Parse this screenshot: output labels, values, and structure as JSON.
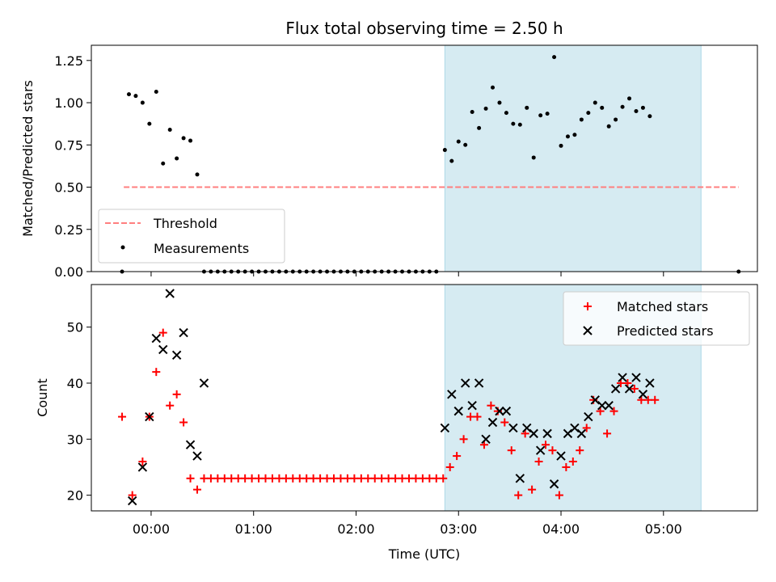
{
  "title": "Flux total observing time = 2.50 h",
  "colors": {
    "threshold": "#ff7f7f",
    "measurement": "#000000",
    "matched": "#ff0000",
    "predicted": "#000000",
    "shade": "#add8e6"
  },
  "chart_data": [
    {
      "type": "scatter",
      "ylabel": "Matched/Predicted stars",
      "xlim": [
        "23:25",
        "05:55"
      ],
      "ylim": [
        0,
        1.34
      ],
      "yticks": [
        0,
        0.25,
        0.5,
        0.75,
        1.0,
        1.25
      ],
      "ytick_labels": [
        "0.00",
        "0.25",
        "0.50",
        "0.75",
        "1.00",
        "1.25"
      ],
      "shaded_region": [
        "02:52",
        "05:22"
      ],
      "legend_position": "lower-left",
      "threshold": {
        "name": "Threshold",
        "value": 0.5,
        "x_range": [
          "23:44",
          "05:44"
        ]
      },
      "series": [
        {
          "name": "Measurements",
          "points": [
            [
              "23:43",
              0.0
            ],
            [
              "23:47",
              1.05
            ],
            [
              "23:51",
              1.04
            ],
            [
              "23:55",
              1.0
            ],
            [
              "23:59",
              0.875
            ],
            [
              "00:03",
              1.065
            ],
            [
              "00:07",
              0.64
            ],
            [
              "00:11",
              0.84
            ],
            [
              "00:15",
              0.67
            ],
            [
              "00:19",
              0.79
            ],
            [
              "00:23",
              0.775
            ],
            [
              "00:27",
              0.575
            ],
            [
              "00:31",
              0.0
            ],
            [
              "00:35",
              0.0
            ],
            [
              "00:39",
              0.0
            ],
            [
              "00:43",
              0.0
            ],
            [
              "00:47",
              0.0
            ],
            [
              "00:51",
              0.0
            ],
            [
              "00:55",
              0.0
            ],
            [
              "00:59",
              0.0
            ],
            [
              "01:03",
              0.0
            ],
            [
              "01:07",
              0.0
            ],
            [
              "01:11",
              0.0
            ],
            [
              "01:15",
              0.0
            ],
            [
              "01:19",
              0.0
            ],
            [
              "01:23",
              0.0
            ],
            [
              "01:27",
              0.0
            ],
            [
              "01:31",
              0.0
            ],
            [
              "01:35",
              0.0
            ],
            [
              "01:39",
              0.0
            ],
            [
              "01:43",
              0.0
            ],
            [
              "01:47",
              0.0
            ],
            [
              "01:51",
              0.0
            ],
            [
              "01:55",
              0.0
            ],
            [
              "01:59",
              0.0
            ],
            [
              "02:03",
              0.0
            ],
            [
              "02:07",
              0.0
            ],
            [
              "02:11",
              0.0
            ],
            [
              "02:15",
              0.0
            ],
            [
              "02:19",
              0.0
            ],
            [
              "02:23",
              0.0
            ],
            [
              "02:27",
              0.0
            ],
            [
              "02:31",
              0.0
            ],
            [
              "02:35",
              0.0
            ],
            [
              "02:39",
              0.0
            ],
            [
              "02:43",
              0.0
            ],
            [
              "02:47",
              0.0
            ],
            [
              "02:52",
              0.72
            ],
            [
              "02:56",
              0.655
            ],
            [
              "03:00",
              0.77
            ],
            [
              "03:04",
              0.75
            ],
            [
              "03:08",
              0.945
            ],
            [
              "03:12",
              0.85
            ],
            [
              "03:16",
              0.965
            ],
            [
              "03:20",
              1.09
            ],
            [
              "03:24",
              1.0
            ],
            [
              "03:28",
              0.94
            ],
            [
              "03:32",
              0.875
            ],
            [
              "03:36",
              0.87
            ],
            [
              "03:40",
              0.97
            ],
            [
              "03:44",
              0.675
            ],
            [
              "03:48",
              0.925
            ],
            [
              "03:52",
              0.935
            ],
            [
              "03:56",
              1.27
            ],
            [
              "04:00",
              0.745
            ],
            [
              "04:04",
              0.8
            ],
            [
              "04:08",
              0.81
            ],
            [
              "04:12",
              0.9
            ],
            [
              "04:16",
              0.94
            ],
            [
              "04:20",
              1.0
            ],
            [
              "04:24",
              0.97
            ],
            [
              "04:28",
              0.86
            ],
            [
              "04:32",
              0.9
            ],
            [
              "04:36",
              0.975
            ],
            [
              "04:40",
              1.025
            ],
            [
              "04:44",
              0.95
            ],
            [
              "04:48",
              0.97
            ],
            [
              "04:52",
              0.92
            ],
            [
              "05:44",
              0.0
            ]
          ]
        }
      ]
    },
    {
      "type": "scatter",
      "xlabel": "Time (UTC)",
      "ylabel": "Count",
      "xlim": [
        "23:25",
        "05:55"
      ],
      "ylim": [
        17.2,
        57.6
      ],
      "yticks": [
        20,
        30,
        40,
        50
      ],
      "xticks": [
        "00:00",
        "01:00",
        "02:00",
        "03:00",
        "04:00",
        "05:00"
      ],
      "xtick_labels": [
        "00:00",
        "01:00",
        "02:00",
        "03:00",
        "04:00",
        "05:00"
      ],
      "shaded_region": [
        "02:52",
        "05:22"
      ],
      "legend_position": "upper-right",
      "series": [
        {
          "name": "Matched stars",
          "marker": "plus",
          "points": [
            [
              "23:43",
              34
            ],
            [
              "23:49",
              20
            ],
            [
              "23:55",
              26
            ],
            [
              "23:59",
              34
            ],
            [
              "00:03",
              42
            ],
            [
              "00:07",
              49
            ],
            [
              "00:11",
              36
            ],
            [
              "00:15",
              38
            ],
            [
              "00:19",
              33
            ],
            [
              "00:23",
              23
            ],
            [
              "00:27",
              21
            ],
            [
              "00:31",
              23
            ],
            [
              "00:35",
              23
            ],
            [
              "00:39",
              23
            ],
            [
              "00:43",
              23
            ],
            [
              "00:47",
              23
            ],
            [
              "00:51",
              23
            ],
            [
              "00:55",
              23
            ],
            [
              "00:59",
              23
            ],
            [
              "01:03",
              23
            ],
            [
              "01:07",
              23
            ],
            [
              "01:11",
              23
            ],
            [
              "01:15",
              23
            ],
            [
              "01:19",
              23
            ],
            [
              "01:23",
              23
            ],
            [
              "01:27",
              23
            ],
            [
              "01:31",
              23
            ],
            [
              "01:35",
              23
            ],
            [
              "01:39",
              23
            ],
            [
              "01:43",
              23
            ],
            [
              "01:47",
              23
            ],
            [
              "01:51",
              23
            ],
            [
              "01:55",
              23
            ],
            [
              "01:59",
              23
            ],
            [
              "02:03",
              23
            ],
            [
              "02:07",
              23
            ],
            [
              "02:11",
              23
            ],
            [
              "02:15",
              23
            ],
            [
              "02:19",
              23
            ],
            [
              "02:23",
              23
            ],
            [
              "02:27",
              23
            ],
            [
              "02:31",
              23
            ],
            [
              "02:35",
              23
            ],
            [
              "02:39",
              23
            ],
            [
              "02:43",
              23
            ],
            [
              "02:47",
              23
            ],
            [
              "02:51",
              23
            ],
            [
              "02:55",
              25
            ],
            [
              "02:59",
              27
            ],
            [
              "03:03",
              30
            ],
            [
              "03:07",
              34
            ],
            [
              "03:11",
              34
            ],
            [
              "03:15",
              29
            ],
            [
              "03:19",
              36
            ],
            [
              "03:23",
              35
            ],
            [
              "03:27",
              33
            ],
            [
              "03:31",
              28
            ],
            [
              "03:35",
              20
            ],
            [
              "03:39",
              31
            ],
            [
              "03:43",
              21
            ],
            [
              "03:47",
              26
            ],
            [
              "03:51",
              29
            ],
            [
              "03:55",
              28
            ],
            [
              "03:59",
              20
            ],
            [
              "04:03",
              25
            ],
            [
              "04:07",
              26
            ],
            [
              "04:11",
              28
            ],
            [
              "04:15",
              32
            ],
            [
              "04:19",
              37
            ],
            [
              "04:23",
              35
            ],
            [
              "04:27",
              31
            ],
            [
              "04:31",
              35
            ],
            [
              "04:35",
              40
            ],
            [
              "04:39",
              40
            ],
            [
              "04:43",
              39
            ],
            [
              "04:47",
              37
            ],
            [
              "04:51",
              37
            ],
            [
              "04:55",
              37
            ]
          ]
        },
        {
          "name": "Predicted stars",
          "marker": "x",
          "points": [
            [
              "23:49",
              19
            ],
            [
              "23:55",
              25
            ],
            [
              "23:59",
              34
            ],
            [
              "00:03",
              48
            ],
            [
              "00:07",
              46
            ],
            [
              "00:11",
              56
            ],
            [
              "00:15",
              45
            ],
            [
              "00:19",
              49
            ],
            [
              "00:23",
              29
            ],
            [
              "00:27",
              27
            ],
            [
              "00:31",
              40
            ],
            [
              "02:52",
              32
            ],
            [
              "02:56",
              38
            ],
            [
              "03:00",
              35
            ],
            [
              "03:04",
              40
            ],
            [
              "03:08",
              36
            ],
            [
              "03:12",
              40
            ],
            [
              "03:16",
              30
            ],
            [
              "03:20",
              33
            ],
            [
              "03:24",
              35
            ],
            [
              "03:28",
              35
            ],
            [
              "03:32",
              32
            ],
            [
              "03:36",
              23
            ],
            [
              "03:40",
              32
            ],
            [
              "03:44",
              31
            ],
            [
              "03:48",
              28
            ],
            [
              "03:52",
              31
            ],
            [
              "03:56",
              22
            ],
            [
              "04:00",
              27
            ],
            [
              "04:04",
              31
            ],
            [
              "04:08",
              32
            ],
            [
              "04:12",
              31
            ],
            [
              "04:16",
              34
            ],
            [
              "04:20",
              37
            ],
            [
              "04:24",
              36
            ],
            [
              "04:28",
              36
            ],
            [
              "04:32",
              39
            ],
            [
              "04:36",
              41
            ],
            [
              "04:40",
              39
            ],
            [
              "04:44",
              41
            ],
            [
              "04:48",
              38
            ],
            [
              "04:52",
              40
            ]
          ]
        }
      ]
    }
  ]
}
